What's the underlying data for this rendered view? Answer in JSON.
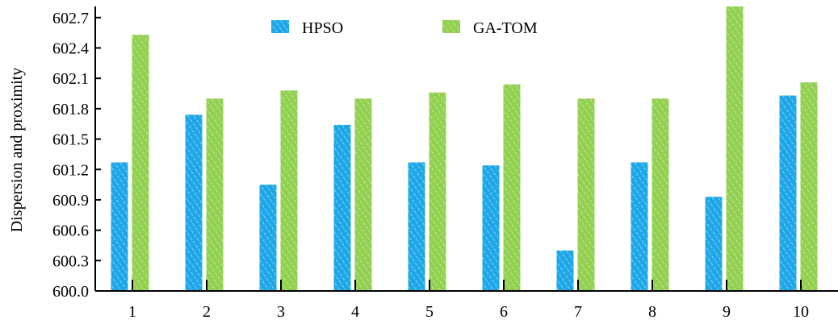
{
  "chart_data": {
    "type": "bar",
    "title": "",
    "xlabel": "",
    "ylabel": "Dispersion and proximity",
    "categories": [
      "1",
      "2",
      "3",
      "4",
      "5",
      "6",
      "7",
      "8",
      "9",
      "10"
    ],
    "series": [
      {
        "name": "HPSO",
        "color": "#1ea7e8",
        "values": [
          601.27,
          601.74,
          601.05,
          601.64,
          601.27,
          601.24,
          600.4,
          601.27,
          600.93,
          601.93
        ]
      },
      {
        "name": "GA-TOM",
        "color": "#92d050",
        "values": [
          602.53,
          601.9,
          601.98,
          601.9,
          601.96,
          602.04,
          601.9,
          601.9,
          602.81,
          602.06
        ]
      }
    ],
    "yticks": [
      "600.0",
      "600.3",
      "600.6",
      "600.9",
      "601.2",
      "601.5",
      "601.8",
      "602.1",
      "602.4",
      "602.7"
    ],
    "ylim": [
      600.0,
      602.81
    ],
    "legend_position": "top-center",
    "grid": false
  }
}
